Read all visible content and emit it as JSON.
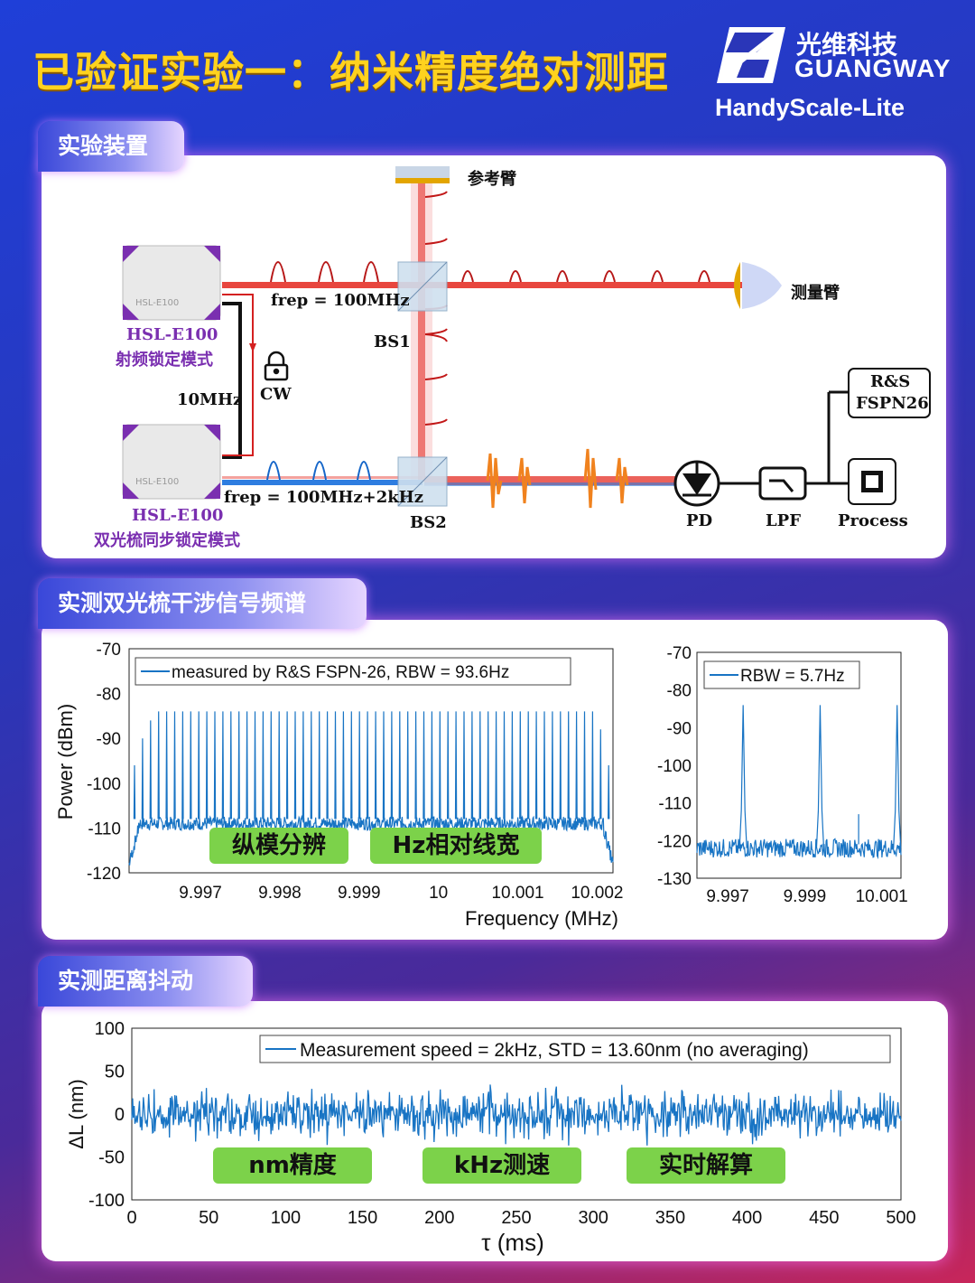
{
  "header": {
    "title": "已验证实验一：纳米精度绝对测距",
    "brand_cn": "光维科技",
    "brand_en": "GUANGWAY",
    "product": "HandyScale-Lite"
  },
  "section1": {
    "tab": "实验装置",
    "reference_arm": "参考臂",
    "measure_arm": "测量臂",
    "device_top_model": "HSL-E100",
    "device_top_mode": "射频锁定模式",
    "device_bottom_model": "HSL-E100",
    "device_bottom_mode": "双光梳同步锁定模式",
    "device_face_label": "HSL-E100",
    "frep_top": "frep = 100MHz",
    "frep_bottom": "frep = 100MHz+2kHz",
    "bs1": "BS1",
    "bs2": "BS2",
    "ref_10mhz": "10MHz",
    "cw": "CW",
    "rs_line1": "R&S",
    "rs_line2": "FSPN26",
    "pd": "PD",
    "lpf": "LPF",
    "process": "Process"
  },
  "section2": {
    "tab": "实测双光梳干涉信号频谱",
    "badge1": "纵模分辨",
    "badge2": "Hz相对线宽",
    "left_legend": "measured by R&S FSPN-26, RBW = 93.6Hz",
    "right_legend": "RBW = 5.7Hz",
    "xlabel": "Frequency (MHz)",
    "ylabel": "Power (dBm)",
    "left_yticks": [
      "-70",
      "-80",
      "-90",
      "-100",
      "-110",
      "-120"
    ],
    "left_xticks": [
      "9.997",
      "9.998",
      "9.999",
      "10",
      "10.001",
      "10.002"
    ],
    "right_yticks": [
      "-70",
      "-80",
      "-90",
      "-100",
      "-110",
      "-120",
      "-130"
    ],
    "right_xticks": [
      "9.997",
      "9.999",
      "10.001"
    ]
  },
  "section3": {
    "tab": "实测距离抖动",
    "badge1": "nm精度",
    "badge2": "kHz测速",
    "badge3": "实时解算",
    "legend": "Measurement speed = 2kHz, STD = 13.60nm (no averaging)",
    "xlabel": "τ (ms)",
    "ylabel": "ΔL (nm)",
    "yticks": [
      "100",
      "50",
      "0",
      "-50",
      "-100"
    ],
    "xticks": [
      "0",
      "50",
      "100",
      "150",
      "200",
      "250",
      "300",
      "350",
      "400",
      "450",
      "500"
    ]
  },
  "chart_data": [
    {
      "type": "line",
      "xlabel": "Frequency (MHz)",
      "ylabel": "Power (dBm)",
      "xlim": [
        9.9961,
        10.0022
      ],
      "ylim": [
        -120,
        -70
      ],
      "series": [
        {
          "name": "measured by R&S FSPN-26, RBW = 93.6Hz",
          "comb_lines": 60,
          "peak_dBm": -84,
          "floor_dBm": -108,
          "edge_dBm": -118
        }
      ]
    },
    {
      "type": "line",
      "xlabel": "Frequency (MHz)",
      "ylim": [
        -130,
        -70
      ],
      "xlim": [
        9.9962,
        10.0015
      ],
      "series": [
        {
          "name": "RBW = 5.7Hz",
          "peaks_MHz": [
            9.9974,
            9.9994,
            10.0014
          ],
          "peak_dBm": -84,
          "floor_dBm": -122
        }
      ]
    },
    {
      "type": "line",
      "xlabel": "τ (ms)",
      "ylabel": "ΔL (nm)",
      "xlim": [
        0,
        500
      ],
      "ylim": [
        -100,
        100
      ],
      "series": [
        {
          "name": "Measurement speed = 2kHz, STD = 13.60nm (no averaging)",
          "mean_nm": 0,
          "std_nm": 13.6
        }
      ]
    }
  ]
}
